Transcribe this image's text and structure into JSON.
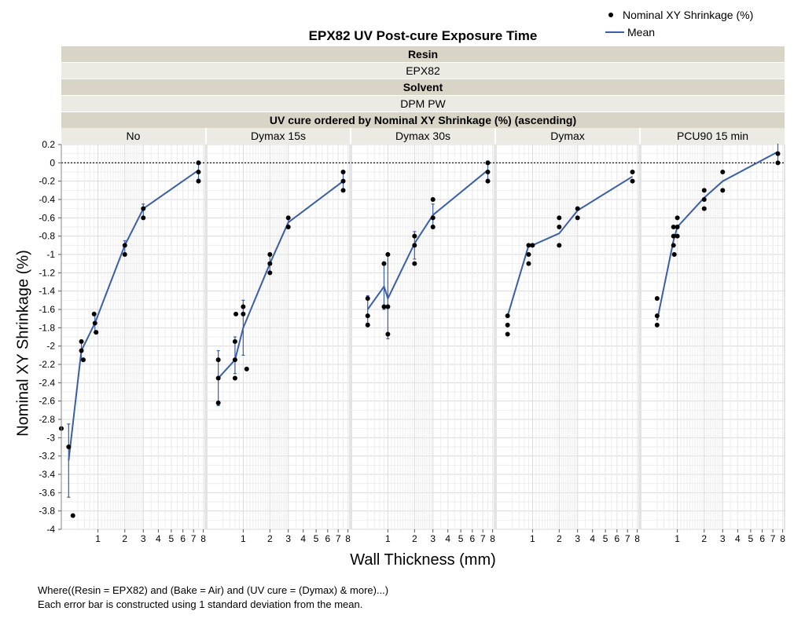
{
  "legend": {
    "points_label": "Nominal XY Shrinkage (%)",
    "mean_label": "Mean"
  },
  "header": {
    "title": "EPX82 UV Post-cure Exposure Time",
    "group1_name": "Resin",
    "group1_value": "EPX82",
    "group2_name": "Solvent",
    "group2_value": "DPM PW",
    "group3_name": "UV cure ordered by Nominal XY Shrinkage (%) (ascending)"
  },
  "footer": {
    "line1": "Where((Resin = EPX82) and (Bake = Air) and (UV cure = (Dymax) & more)...)",
    "line2": "Each error bar is constructed using 1 standard deviation from the mean."
  },
  "colors": {
    "mean_line": "#3a5ea8",
    "points": "#000000",
    "grid": "#d9d9d9",
    "band_dark": "#d8d5c6",
    "band_light": "#ebeae3"
  },
  "chart_data": {
    "type": "scatter",
    "xlabel": "Wall Thickness (mm)",
    "ylabel": "Nominal XY Shrinkage (%)",
    "ylim": [
      -4,
      0.2
    ],
    "yticks": [
      0.2,
      0,
      -0.2,
      -0.4,
      -0.6,
      -0.8,
      -1,
      -1.2,
      -1.4,
      -1.6,
      -1.8,
      -2,
      -2.2,
      -2.4,
      -2.6,
      -2.8,
      -3,
      -3.2,
      -3.4,
      -3.6,
      -3.8,
      -4
    ],
    "ytick_labels": [
      "0.2",
      "0",
      "-0.2",
      "-0.4",
      "-0.6",
      "-0.8",
      "-1",
      "-1.2",
      "-1.4",
      "-1.6",
      "-1.8",
      "-2",
      "-2.2",
      "-2.4",
      "-2.6",
      "-2.8",
      "-3",
      "-3.2",
      "-3.4",
      "-3.6",
      "-3.8",
      "-4"
    ],
    "xlim": [
      0.5,
      8.2
    ],
    "xticks": [
      1,
      2,
      3,
      4,
      5,
      6,
      7,
      8
    ],
    "xtick_labels": [
      "1",
      "2",
      "3",
      "4",
      "5",
      "6",
      "7",
      "8"
    ],
    "reference_line_y": 0,
    "panels": [
      {
        "label": "No",
        "points": [
          [
            0.5,
            -2.9
          ],
          [
            0.52,
            -3.1
          ],
          [
            0.55,
            -3.85
          ],
          [
            0.65,
            -1.95
          ],
          [
            0.65,
            -2.05
          ],
          [
            0.68,
            -2.15
          ],
          [
            0.9,
            -1.65
          ],
          [
            0.92,
            -1.75
          ],
          [
            0.95,
            -1.85
          ],
          [
            2,
            -0.9
          ],
          [
            2,
            -1.0
          ],
          [
            3,
            -0.5
          ],
          [
            3,
            -0.6
          ],
          [
            7.5,
            0
          ],
          [
            7.5,
            -0.1
          ],
          [
            7.5,
            -0.2
          ]
        ],
        "mean": [
          [
            0.52,
            -3.25
          ],
          [
            0.65,
            -2.05
          ],
          [
            0.92,
            -1.75
          ],
          [
            2,
            -0.9
          ],
          [
            3,
            -0.5
          ],
          [
            7.5,
            -0.08
          ]
        ],
        "error_bars": [
          [
            0.52,
            -3.65,
            -2.85
          ],
          [
            0.65,
            -2.15,
            -1.95
          ],
          [
            0.92,
            -1.85,
            -1.65
          ],
          [
            2,
            -1.0,
            -0.85
          ],
          [
            3,
            -0.6,
            -0.45
          ],
          [
            7.5,
            -0.18,
            0.02
          ]
        ]
      },
      {
        "label": "Dymax 15s",
        "points": [
          [
            0.55,
            -2.15
          ],
          [
            0.55,
            -2.35
          ],
          [
            0.55,
            -2.62
          ],
          [
            0.8,
            -1.95
          ],
          [
            0.82,
            -1.65
          ],
          [
            0.8,
            -2.15
          ],
          [
            0.8,
            -2.35
          ],
          [
            1.0,
            -1.65
          ],
          [
            1.0,
            -1.57
          ],
          [
            1.1,
            -2.25
          ],
          [
            2,
            -1.0
          ],
          [
            2,
            -1.1
          ],
          [
            2,
            -1.2
          ],
          [
            3,
            -0.6
          ],
          [
            3,
            -0.7
          ],
          [
            7.5,
            -0.1
          ],
          [
            7.5,
            -0.2
          ],
          [
            7.5,
            -0.3
          ]
        ],
        "mean": [
          [
            0.55,
            -2.35
          ],
          [
            0.8,
            -2.15
          ],
          [
            1.0,
            -1.8
          ],
          [
            2,
            -1.1
          ],
          [
            3,
            -0.65
          ],
          [
            7.5,
            -0.2
          ]
        ],
        "error_bars": [
          [
            0.55,
            -2.65,
            -2.05
          ],
          [
            0.8,
            -2.3,
            -1.9
          ],
          [
            1.0,
            -2.1,
            -1.5
          ],
          [
            2,
            -1.2,
            -1.0
          ],
          [
            3,
            -0.7,
            -0.6
          ],
          [
            7.5,
            -0.3,
            -0.1
          ]
        ]
      },
      {
        "label": "Dymax 30s",
        "points": [
          [
            0.6,
            -1.48
          ],
          [
            0.6,
            -1.67
          ],
          [
            0.6,
            -1.77
          ],
          [
            0.9,
            -1.1
          ],
          [
            0.9,
            -1.57
          ],
          [
            1.0,
            -1.0
          ],
          [
            1.0,
            -1.57
          ],
          [
            1.0,
            -1.87
          ],
          [
            2,
            -0.8
          ],
          [
            2,
            -0.9
          ],
          [
            2,
            -1.1
          ],
          [
            3,
            -0.4
          ],
          [
            3,
            -0.6
          ],
          [
            3,
            -0.7
          ],
          [
            7.5,
            0
          ],
          [
            7.5,
            -0.1
          ],
          [
            7.5,
            -0.2
          ]
        ],
        "mean": [
          [
            0.6,
            -1.6
          ],
          [
            0.9,
            -1.35
          ],
          [
            1.0,
            -1.48
          ],
          [
            2,
            -0.88
          ],
          [
            3,
            -0.57
          ],
          [
            7.5,
            -0.08
          ]
        ],
        "error_bars": [
          [
            0.6,
            -1.75,
            -1.45
          ],
          [
            0.9,
            -1.6,
            -1.1
          ],
          [
            1.0,
            -1.92,
            -1.0
          ],
          [
            2,
            -1.05,
            -0.75
          ],
          [
            3,
            -0.7,
            -0.45
          ],
          [
            7.5,
            -0.18,
            0.02
          ]
        ]
      },
      {
        "label": "Dymax",
        "points": [
          [
            0.55,
            -1.67
          ],
          [
            0.55,
            -1.77
          ],
          [
            0.55,
            -1.87
          ],
          [
            0.9,
            -0.9
          ],
          [
            0.9,
            -1.0
          ],
          [
            0.9,
            -1.1
          ],
          [
            1.0,
            -0.9
          ],
          [
            2,
            -0.6
          ],
          [
            2,
            -0.7
          ],
          [
            2,
            -0.9
          ],
          [
            3,
            -0.5
          ],
          [
            3,
            -0.6
          ],
          [
            7.5,
            -0.1
          ],
          [
            7.5,
            -0.2
          ]
        ],
        "mean": [
          [
            0.55,
            -1.67
          ],
          [
            0.9,
            -0.9
          ],
          [
            1.0,
            -0.9
          ],
          [
            2,
            -0.77
          ],
          [
            3,
            -0.52
          ],
          [
            7.5,
            -0.15
          ]
        ],
        "error_bars": []
      },
      {
        "label": "PCU90 15 min",
        "points": [
          [
            0.6,
            -1.48
          ],
          [
            0.6,
            -1.67
          ],
          [
            0.6,
            -1.77
          ],
          [
            0.9,
            -0.7
          ],
          [
            0.9,
            -0.8
          ],
          [
            0.9,
            -0.9
          ],
          [
            0.92,
            -1.0
          ],
          [
            1.0,
            -0.6
          ],
          [
            1.0,
            -0.7
          ],
          [
            1.0,
            -0.8
          ],
          [
            2,
            -0.3
          ],
          [
            2,
            -0.4
          ],
          [
            2,
            -0.5
          ],
          [
            3,
            -0.1
          ],
          [
            3,
            -0.3
          ],
          [
            7.5,
            0.1
          ],
          [
            7.5,
            0
          ]
        ],
        "mean": [
          [
            0.6,
            -1.72
          ],
          [
            0.9,
            -0.85
          ],
          [
            1.0,
            -0.7
          ],
          [
            2,
            -0.38
          ],
          [
            3,
            -0.2
          ],
          [
            7.5,
            0.12
          ]
        ],
        "error_bars": [
          [
            7.5,
            0,
            0.25
          ]
        ]
      }
    ]
  }
}
